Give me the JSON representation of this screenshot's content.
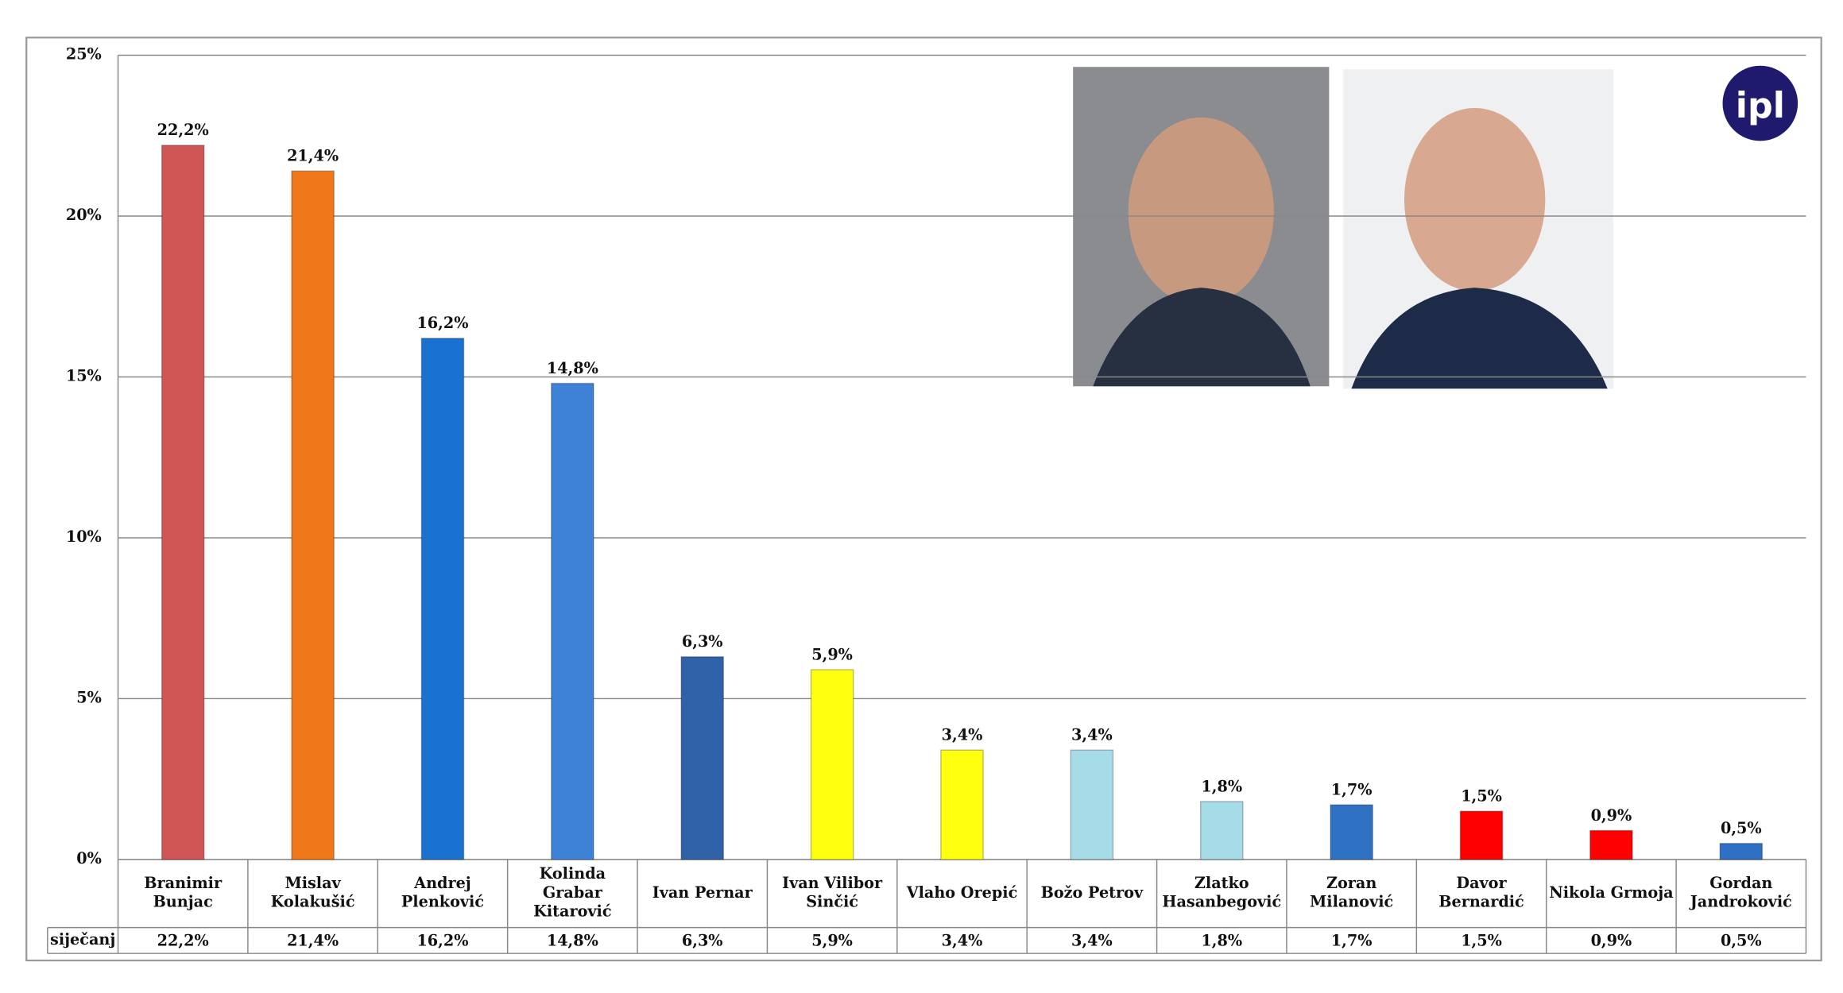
{
  "chart_data": {
    "type": "bar",
    "categories": [
      "Branimir\nBunjac",
      "Mislav\nKolakušić",
      "Andrej\nPlenković",
      "Kolinda\nGrabar\nKitarović",
      "Ivan Pernar",
      "Ivan Vilibor\nSinčić",
      "Vlaho Orepić",
      "Božo Petrov",
      "Zlatko\nHasanbegović",
      "Zoran\nMilanović",
      "Davor\nBernardić",
      "Nikola Grmoja",
      "Gordan\nJandroković"
    ],
    "series": [
      {
        "name": "siječanj",
        "values": [
          22.2,
          21.4,
          16.2,
          14.8,
          6.3,
          5.9,
          3.4,
          3.4,
          1.8,
          1.7,
          1.5,
          0.9,
          0.5
        ],
        "value_labels": [
          "22,2%",
          "21,4%",
          "16,2%",
          "14,8%",
          "6,3%",
          "5,9%",
          "3,4%",
          "3,4%",
          "1,8%",
          "1,7%",
          "1,5%",
          "0,9%",
          "0,5%"
        ],
        "colors": [
          "#d05555",
          "#f07818",
          "#1a72d0",
          "#3d82d6",
          "#2f62a8",
          "#ffff10",
          "#ffff10",
          "#a6dce8",
          "#a6dce8",
          "#2f72c4",
          "#ff0000",
          "#ff0000",
          "#3070c4"
        ]
      }
    ],
    "ylim": [
      0,
      25
    ],
    "yticks": [
      {
        "value": 0,
        "label": "0%"
      },
      {
        "value": 5,
        "label": "5%"
      },
      {
        "value": 10,
        "label": "10%"
      },
      {
        "value": 15,
        "label": "15%"
      },
      {
        "value": 20,
        "label": "20%"
      },
      {
        "value": 25,
        "label": "25%"
      }
    ],
    "grid": true,
    "logo": "ipl"
  }
}
